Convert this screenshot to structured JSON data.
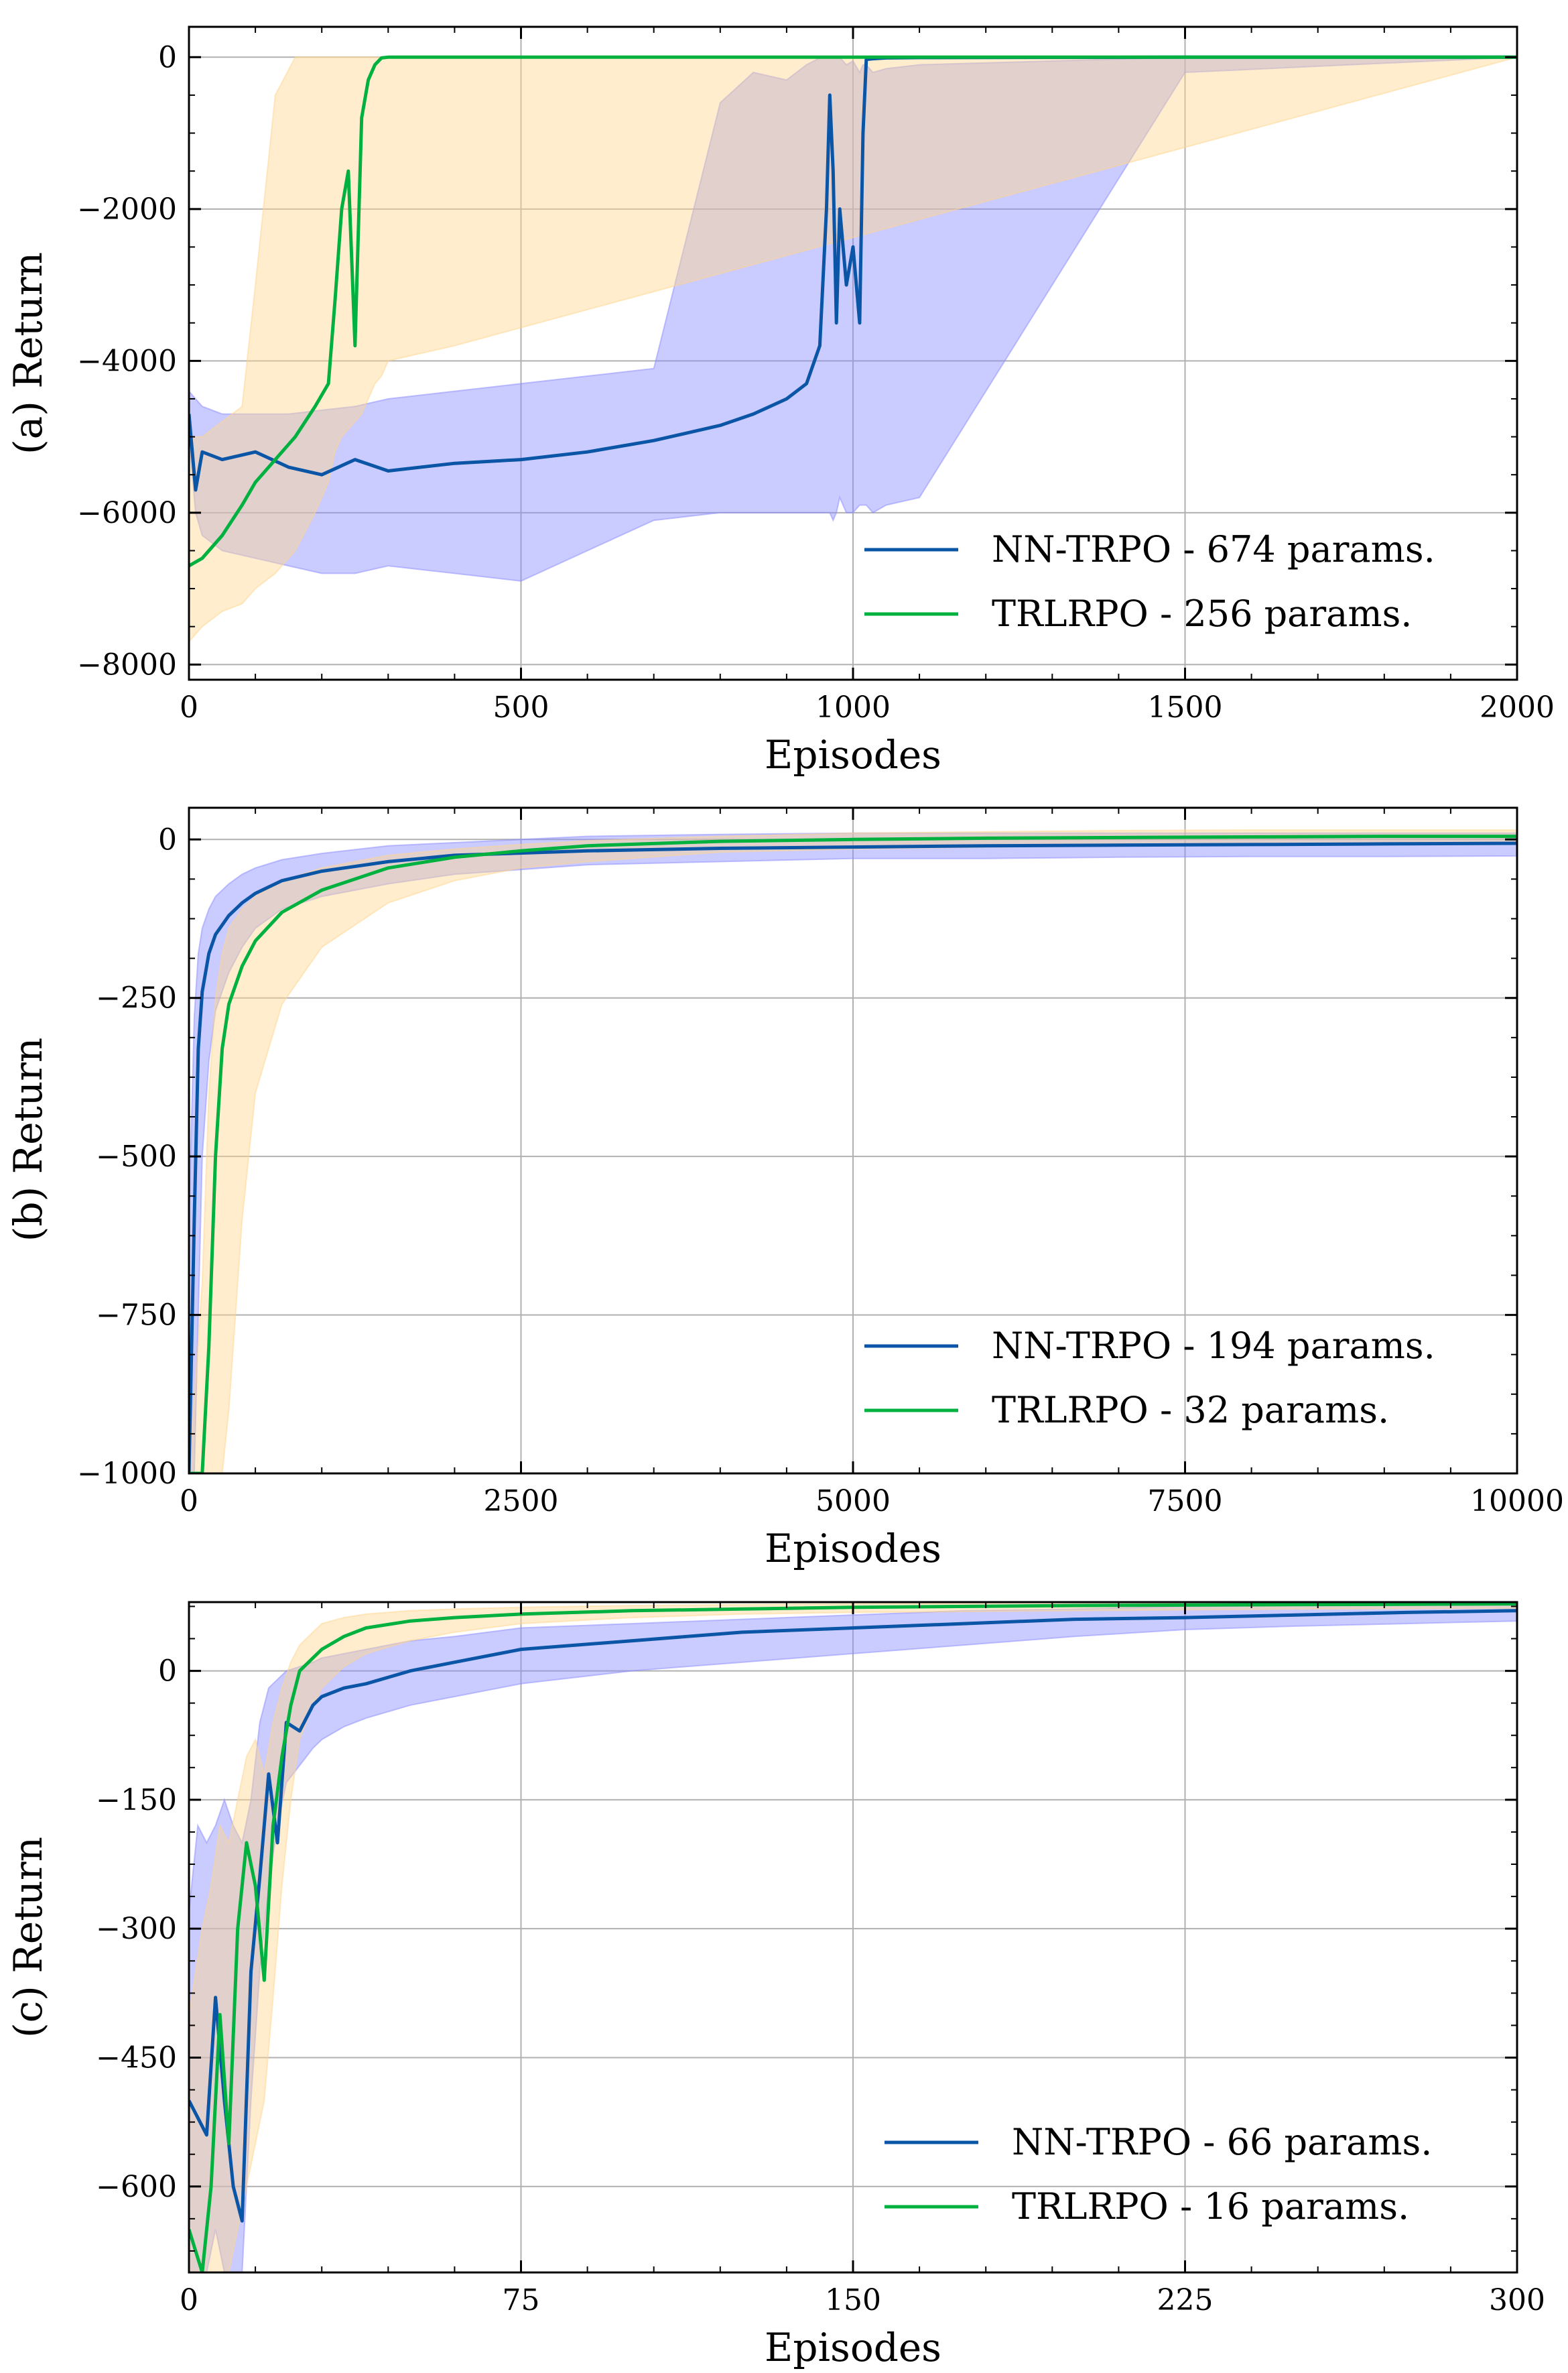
{
  "figure": {
    "colors": {
      "nn_line": "#0b55a6",
      "trlrpo_line": "#00b140",
      "nn_band": "#8a8cff",
      "trlrpo_band": "#ffd690",
      "grid": "#b0b0b0"
    }
  },
  "chart_data": [
    {
      "type": "line",
      "ylabel": "(a) Return",
      "xlabel": "Episodes",
      "xlim": [
        0,
        2000
      ],
      "ylim": [
        -8200,
        400
      ],
      "xticks": [
        0,
        500,
        1000,
        1500,
        2000
      ],
      "xtick_labels": [
        "0",
        "500",
        "1000",
        "1500",
        "2000"
      ],
      "yticks": [
        0,
        -2000,
        -4000,
        -6000,
        -8000
      ],
      "ytick_labels": [
        "0",
        "−2000",
        "−4000",
        "−6000",
        "−8000"
      ],
      "grid": true,
      "legend_position": "lower right",
      "series": [
        {
          "name": "NN-TRPO - 674 params.",
          "color": "#0b55a6",
          "band_color": "#8a8cff",
          "x": [
            0,
            10,
            20,
            50,
            100,
            150,
            200,
            250,
            300,
            400,
            500,
            600,
            700,
            800,
            850,
            900,
            930,
            950,
            960,
            965,
            970,
            975,
            980,
            990,
            1000,
            1010,
            1015,
            1020,
            1030,
            1050,
            1100,
            1500,
            2000
          ],
          "y": [
            -4700,
            -5700,
            -5200,
            -5300,
            -5200,
            -5400,
            -5500,
            -5300,
            -5450,
            -5350,
            -5300,
            -5200,
            -5050,
            -4850,
            -4700,
            -4500,
            -4300,
            -3800,
            -2000,
            -500,
            -1500,
            -3500,
            -2000,
            -3000,
            -2500,
            -3500,
            -1000,
            -30,
            -20,
            -10,
            -5,
            0,
            0
          ],
          "band_upper": [
            -4400,
            -4500,
            -4600,
            -4700,
            -4700,
            -4700,
            -4650,
            -4600,
            -4500,
            -4400,
            -4300,
            -4200,
            -4100,
            -600,
            -200,
            -300,
            -100,
            -10,
            0,
            0,
            0,
            0,
            0,
            -100,
            -50,
            -200,
            -100,
            -100,
            -200,
            -150,
            -100,
            0,
            0
          ],
          "band_lower": [
            -5000,
            -6000,
            -6300,
            -6500,
            -6600,
            -6700,
            -6800,
            -6800,
            -6700,
            -6800,
            -6900,
            -6500,
            -6100,
            -6000,
            -6000,
            -6000,
            -6000,
            -6000,
            -6000,
            -6000,
            -6100,
            -6000,
            -5800,
            -6000,
            -6000,
            -5900,
            -5900,
            -5900,
            -6000,
            -5900,
            -5800,
            -200,
            0
          ]
        },
        {
          "name": "TRLRPO - 256 params.",
          "color": "#00b140",
          "band_color": "#ffd690",
          "x": [
            0,
            20,
            50,
            80,
            100,
            130,
            160,
            190,
            210,
            220,
            230,
            240,
            250,
            260,
            270,
            280,
            290,
            300,
            400,
            2000
          ],
          "y": [
            -6700,
            -6600,
            -6300,
            -5900,
            -5600,
            -5300,
            -5000,
            -4600,
            -4300,
            -3200,
            -2000,
            -1500,
            -3800,
            -800,
            -300,
            -100,
            -10,
            0,
            0,
            0
          ],
          "band_upper": [
            -5000,
            -5000,
            -4800,
            -4600,
            -3000,
            -500,
            0,
            0,
            0,
            0,
            0,
            0,
            0,
            0,
            0,
            0,
            0,
            0,
            0,
            0
          ],
          "band_lower": [
            -7700,
            -7500,
            -7300,
            -7200,
            -7000,
            -6800,
            -6500,
            -6000,
            -5600,
            -5200,
            -5000,
            -4900,
            -4800,
            -4700,
            -4500,
            -4300,
            -4200,
            -4000,
            -3800,
            0
          ]
        }
      ]
    },
    {
      "type": "line",
      "ylabel": "(b) Return",
      "xlabel": "Episodes",
      "xlim": [
        0,
        10000
      ],
      "ylim": [
        -1000,
        50
      ],
      "xticks": [
        0,
        2500,
        5000,
        7500,
        10000
      ],
      "xtick_labels": [
        "0",
        "2500",
        "5000",
        "7500",
        "10000"
      ],
      "yticks": [
        0,
        -250,
        -500,
        -750,
        -1000
      ],
      "ytick_labels": [
        "0",
        "−250",
        "−500",
        "−750",
        "−1000"
      ],
      "grid": true,
      "legend_position": "lower right",
      "series": [
        {
          "name": "NN-TRPO - 194 params.",
          "color": "#0b55a6",
          "band_color": "#8a8cff",
          "x": [
            0,
            40,
            70,
            100,
            150,
            200,
            300,
            400,
            500,
            700,
            1000,
            1500,
            2000,
            3000,
            4000,
            5000,
            6000,
            7000,
            8000,
            9000,
            10000
          ],
          "y": [
            -1000,
            -600,
            -330,
            -240,
            -180,
            -150,
            -120,
            -100,
            -85,
            -65,
            -50,
            -35,
            -25,
            -18,
            -14,
            -12,
            -10,
            -9,
            -8,
            -7,
            -6
          ],
          "band_upper": [
            -600,
            -280,
            -180,
            -140,
            -110,
            -90,
            -70,
            -55,
            -45,
            -32,
            -22,
            -10,
            -5,
            5,
            8,
            10,
            10,
            10,
            10,
            10,
            10
          ],
          "band_lower": [
            -1000,
            -1000,
            -750,
            -500,
            -350,
            -270,
            -210,
            -170,
            -140,
            -110,
            -90,
            -70,
            -55,
            -40,
            -35,
            -30,
            -30,
            -28,
            -27,
            -27,
            -26
          ]
        },
        {
          "name": "TRLRPO - 32 params.",
          "color": "#00b140",
          "band_color": "#ffd690",
          "x": [
            0,
            100,
            150,
            200,
            250,
            300,
            400,
            500,
            700,
            1000,
            1500,
            2000,
            2500,
            3000,
            4000,
            5000,
            6000,
            7000,
            8000,
            9000,
            10000
          ],
          "y": [
            -1000,
            -1000,
            -800,
            -500,
            -330,
            -260,
            -200,
            -160,
            -115,
            -80,
            -45,
            -28,
            -18,
            -10,
            -3,
            0,
            2,
            3,
            4,
            5,
            5
          ],
          "band_upper": [
            -1000,
            -700,
            -400,
            -250,
            -180,
            -140,
            -110,
            -90,
            -65,
            -45,
            -25,
            -15,
            -8,
            -2,
            5,
            10,
            12,
            14,
            15,
            15,
            15
          ],
          "band_lower": [
            -1000,
            -1000,
            -1000,
            -1000,
            -1000,
            -900,
            -600,
            -400,
            -260,
            -170,
            -100,
            -65,
            -45,
            -35,
            -20,
            -15,
            -12,
            -10,
            -8,
            -7,
            -6
          ]
        }
      ]
    },
    {
      "type": "line",
      "ylabel": "(c) Return",
      "xlabel": "Episodes",
      "xlim": [
        0,
        300
      ],
      "ylim": [
        -700,
        80
      ],
      "xticks": [
        0,
        75,
        150,
        225,
        300
      ],
      "xtick_labels": [
        "0",
        "75",
        "150",
        "225",
        "300"
      ],
      "yticks": [
        0,
        -150,
        -300,
        -450,
        -600
      ],
      "ytick_labels": [
        "0",
        "−150",
        "−300",
        "−450",
        "−600"
      ],
      "grid": true,
      "legend_position": "lower right",
      "series": [
        {
          "name": "NN-TRPO - 66 params.",
          "color": "#0b55a6",
          "band_color": "#8a8cff",
          "x": [
            0,
            2,
            4,
            6,
            8,
            10,
            12,
            14,
            16,
            18,
            20,
            22,
            25,
            28,
            30,
            35,
            40,
            50,
            60,
            75,
            100,
            125,
            150,
            175,
            200,
            225,
            250,
            275,
            300
          ],
          "y": [
            -500,
            -520,
            -540,
            -380,
            -500,
            -600,
            -640,
            -350,
            -240,
            -120,
            -200,
            -60,
            -70,
            -40,
            -30,
            -20,
            -15,
            0,
            10,
            25,
            35,
            45,
            50,
            55,
            60,
            62,
            65,
            68,
            70
          ],
          "band_upper": [
            -280,
            -180,
            -200,
            -180,
            -150,
            -180,
            -200,
            -150,
            -60,
            -20,
            -10,
            0,
            5,
            10,
            15,
            20,
            25,
            35,
            40,
            50,
            55,
            60,
            65,
            70,
            72,
            75,
            76,
            78,
            78
          ],
          "band_lower": [
            -700,
            -700,
            -700,
            -650,
            -700,
            -700,
            -700,
            -500,
            -350,
            -250,
            -180,
            -130,
            -110,
            -90,
            -80,
            -65,
            -55,
            -40,
            -30,
            -15,
            0,
            10,
            20,
            30,
            40,
            48,
            52,
            55,
            58
          ]
        },
        {
          "name": "TRLRPO - 16 params.",
          "color": "#00b140",
          "band_color": "#ffd690",
          "x": [
            0,
            3,
            5,
            7,
            9,
            11,
            13,
            15,
            17,
            19,
            21,
            23,
            25,
            28,
            30,
            35,
            40,
            50,
            60,
            75,
            100,
            125,
            150,
            200,
            250,
            300
          ],
          "y": [
            -650,
            -700,
            -600,
            -400,
            -550,
            -300,
            -200,
            -250,
            -360,
            -180,
            -100,
            -40,
            0,
            15,
            25,
            40,
            50,
            58,
            62,
            66,
            70,
            72,
            74,
            76,
            77,
            78
          ],
          "band_upper": [
            -400,
            -300,
            -250,
            -180,
            -200,
            -150,
            -100,
            -80,
            -120,
            -60,
            -20,
            10,
            30,
            45,
            55,
            62,
            66,
            70,
            72,
            74,
            76,
            77,
            78,
            80,
            80,
            80
          ],
          "band_lower": [
            -700,
            -700,
            -700,
            -700,
            -700,
            -650,
            -600,
            -550,
            -500,
            -380,
            -250,
            -150,
            -80,
            -40,
            -20,
            5,
            20,
            35,
            45,
            55,
            62,
            66,
            68,
            70,
            72,
            73
          ]
        }
      ]
    }
  ]
}
